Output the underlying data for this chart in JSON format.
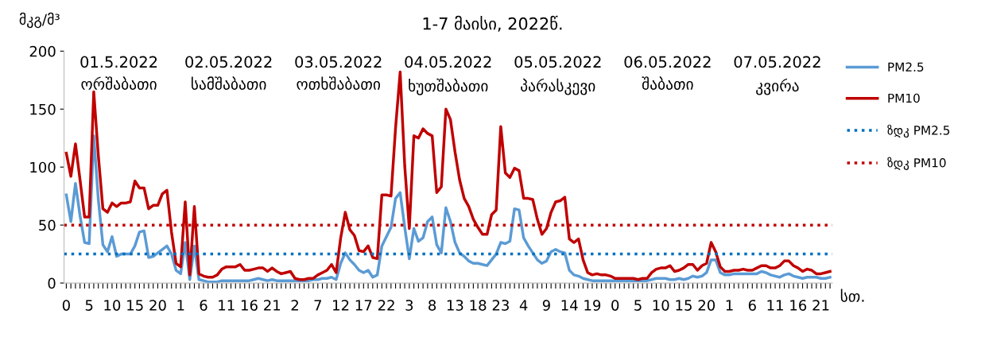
{
  "chart_data": {
    "type": "line",
    "title": "1-7 მაისი, 2022წ.",
    "ylabel": "მკგ/მ³",
    "xlabel": "სთ.",
    "categories": [
      "0",
      null,
      null,
      null,
      null,
      "5",
      null,
      null,
      null,
      null,
      "10",
      null,
      null,
      null,
      null,
      "15",
      null,
      null,
      null,
      null,
      "20",
      null,
      null,
      null,
      null,
      "1",
      null,
      null,
      null,
      null,
      "6",
      null,
      null,
      null,
      null,
      "11",
      null,
      null,
      null,
      null,
      "16",
      null,
      null,
      null,
      null,
      "21",
      null,
      null,
      null,
      null,
      "2",
      null,
      null,
      null,
      null,
      "7",
      null,
      null,
      null,
      null,
      "12",
      null,
      null,
      null,
      null,
      "17",
      null,
      null,
      null,
      null,
      "22",
      null,
      null,
      null,
      null,
      "3",
      null,
      null,
      null,
      null,
      "8",
      null,
      null,
      null,
      null,
      "13",
      null,
      null,
      null,
      null,
      "18",
      null,
      null,
      null,
      null,
      "23",
      null,
      null,
      null,
      null,
      "4",
      null,
      null,
      null,
      null,
      "9",
      null,
      null,
      null,
      null,
      "14",
      null,
      null,
      null,
      null,
      "19",
      null,
      null,
      null,
      null,
      "0",
      null,
      null,
      null,
      null,
      "5",
      null,
      null,
      null,
      null,
      "10",
      null,
      null,
      null,
      null,
      "15",
      null,
      null,
      null,
      null,
      "20",
      null,
      null,
      null,
      null,
      "1",
      null,
      null,
      null,
      null,
      "6",
      null,
      null,
      null,
      null,
      "11",
      null,
      null,
      null,
      null,
      "16",
      null,
      null,
      null,
      null,
      "21",
      null,
      null
    ],
    "series": [
      {
        "name": "PM2.5",
        "color": "#5b9bd5",
        "values": [
          76,
          53,
          86,
          58,
          35,
          34,
          127,
          72,
          33,
          27,
          40,
          23,
          25,
          25,
          25,
          32,
          44,
          45,
          22,
          23,
          26,
          29,
          32,
          25,
          11,
          8,
          35,
          3,
          32,
          3,
          2,
          1,
          1,
          1,
          2,
          2,
          2,
          2,
          2,
          2,
          2,
          3,
          4,
          3,
          2,
          3,
          2,
          2,
          2,
          2,
          2,
          2,
          2,
          2,
          3,
          3,
          4,
          4,
          5,
          3,
          17,
          26,
          20,
          16,
          11,
          9,
          11,
          5,
          7,
          32,
          40,
          48,
          73,
          78,
          48,
          21,
          47,
          36,
          39,
          53,
          57,
          33,
          26,
          65,
          53,
          35,
          26,
          23,
          19,
          17,
          17,
          16,
          15,
          20,
          25,
          35,
          34,
          36,
          64,
          63,
          39,
          32,
          26,
          20,
          17,
          19,
          27,
          29,
          27,
          26,
          11,
          7,
          6,
          4,
          3,
          2,
          2,
          2,
          2,
          2,
          2,
          2,
          2,
          2,
          2,
          2,
          2,
          2,
          3,
          4,
          4,
          4,
          3,
          3,
          4,
          3,
          4,
          6,
          5,
          6,
          9,
          20,
          20,
          9,
          7,
          7,
          8,
          8,
          8,
          8,
          8,
          8,
          10,
          9,
          7,
          6,
          5,
          7,
          8,
          6,
          5,
          4,
          5,
          5,
          5,
          4,
          4,
          5
        ]
      },
      {
        "name": "PM10",
        "color": "#c00000",
        "values": [
          112,
          92,
          120,
          89,
          57,
          57,
          165,
          110,
          64,
          61,
          69,
          66,
          69,
          69,
          70,
          88,
          82,
          82,
          64,
          67,
          67,
          77,
          80,
          44,
          17,
          14,
          70,
          7,
          66,
          8,
          6,
          5,
          5,
          7,
          12,
          14,
          14,
          14,
          16,
          11,
          11,
          12,
          13,
          13,
          10,
          13,
          10,
          8,
          9,
          10,
          4,
          3,
          3,
          4,
          4,
          7,
          9,
          11,
          16,
          9,
          39,
          61,
          46,
          41,
          28,
          27,
          32,
          22,
          21,
          76,
          76,
          75,
          134,
          182,
          101,
          47,
          127,
          125,
          133,
          129,
          127,
          78,
          83,
          150,
          141,
          113,
          89,
          73,
          66,
          55,
          48,
          42,
          42,
          59,
          63,
          135,
          95,
          91,
          99,
          97,
          73,
          73,
          72,
          55,
          42,
          47,
          61,
          70,
          71,
          74,
          38,
          35,
          38,
          20,
          9,
          7,
          8,
          7,
          7,
          6,
          4,
          4,
          4,
          4,
          4,
          3,
          4,
          4,
          9,
          12,
          13,
          13,
          15,
          10,
          11,
          13,
          16,
          16,
          11,
          15,
          17,
          35,
          27,
          14,
          10,
          10,
          11,
          11,
          12,
          11,
          11,
          13,
          15,
          15,
          13,
          13,
          15,
          19,
          19,
          15,
          13,
          10,
          12,
          11,
          8,
          8,
          9,
          10
        ]
      }
    ],
    "ref_lines": [
      {
        "axis": "y",
        "value": 25,
        "label": "ზდკ PM2.5",
        "color": "#0070c0",
        "line_style": "dotted"
      },
      {
        "axis": "y",
        "value": 50,
        "label": "ზდკ PM10",
        "color": "#c00000",
        "line_style": "dotted"
      }
    ],
    "ylim": [
      0,
      200
    ],
    "yticks": [
      0,
      50,
      100,
      150,
      200
    ],
    "grid": false,
    "legend": "right",
    "annotations": [
      "01.5.2022\nორშაბათი",
      "02.05.2022\nსამშაბათი",
      "03.05.2022\nოთხშაბათი",
      "04.05.2022\nხუთშაბათი",
      "05.05.2022\nპარასკევი",
      "06.05.2022\nშაბათი",
      "07.05.2022\nკვირა"
    ]
  }
}
